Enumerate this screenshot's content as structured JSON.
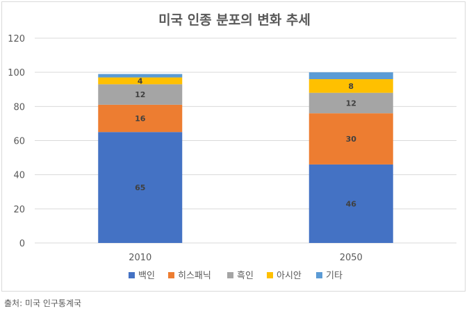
{
  "chart_data": {
    "type": "stacked-bar",
    "title": "미국 인종 분포의 변화 추세",
    "categories": [
      "2010",
      "2050"
    ],
    "series": [
      {
        "name": "백인",
        "color": "#4472C4",
        "values": [
          65,
          46
        ],
        "labels": [
          "65",
          "46"
        ]
      },
      {
        "name": "히스패닉",
        "color": "#ED7D31",
        "values": [
          16,
          30
        ],
        "labels": [
          "16",
          "30"
        ]
      },
      {
        "name": "흑인",
        "color": "#A5A5A5",
        "values": [
          12,
          12
        ],
        "labels": [
          "12",
          "12"
        ]
      },
      {
        "name": "아시안",
        "color": "#FFC000",
        "values": [
          4,
          8
        ],
        "labels": [
          "4",
          "8"
        ]
      },
      {
        "name": "기타",
        "color": "#5B9BD5",
        "values": [
          2,
          4
        ],
        "labels": [
          "",
          ""
        ]
      }
    ],
    "ylim": [
      0,
      120
    ],
    "yticks": [
      0,
      20,
      40,
      60,
      80,
      100,
      120
    ],
    "grid": true,
    "legend_position": "bottom"
  },
  "source": "출처: 미국 인구통계국"
}
